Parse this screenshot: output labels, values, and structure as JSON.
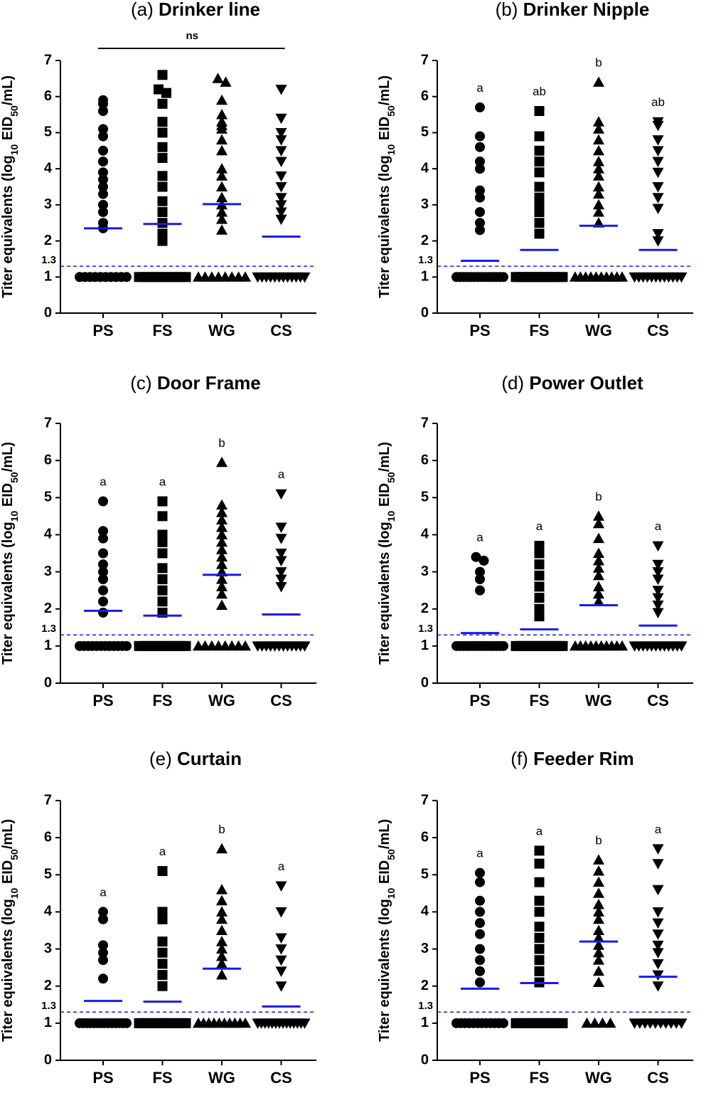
{
  "chart_data": [
    {
      "type": "dotplot",
      "label": "(a)",
      "title": "Drinker line",
      "ylabel": [
        "Titer equivalents (log",
        "10",
        " EID",
        "50",
        "/mL)"
      ],
      "categories": [
        "PS",
        "FS",
        "WG",
        "CS"
      ],
      "markers": [
        "circle",
        "square",
        "triangle-up",
        "triangle-down"
      ],
      "values": [
        [
          5.9,
          5.8,
          5.6,
          5.1,
          4.9,
          4.5,
          4.2,
          3.9,
          3.7,
          3.5,
          3.3,
          3.0,
          2.8,
          2.5,
          2.35,
          1,
          1,
          1,
          1,
          1,
          1,
          1,
          1,
          1,
          1
        ],
        [
          6.6,
          6.2,
          6.1,
          5.8,
          5.3,
          5.0,
          4.6,
          4.3,
          3.8,
          3.5,
          3.1,
          2.8,
          2.5,
          2.2,
          2.0,
          1,
          1,
          1,
          1,
          1,
          1,
          1,
          1,
          1,
          1
        ],
        [
          6.5,
          6.4,
          5.9,
          5.5,
          5.3,
          5.2,
          5.1,
          4.8,
          4.5,
          4.0,
          3.8,
          3.5,
          3.2,
          3.0,
          2.8,
          2.6,
          2.3,
          1,
          1,
          1,
          1,
          1,
          1,
          1,
          1
        ],
        [
          6.2,
          5.4,
          5.0,
          4.8,
          4.5,
          4.2,
          3.8,
          3.5,
          3.2,
          3.0,
          2.8,
          2.6,
          1,
          1,
          1,
          1,
          1,
          1,
          1,
          1,
          1,
          1,
          1,
          1
        ]
      ],
      "means": [
        2.35,
        2.47,
        3.02,
        2.12
      ],
      "annotation": "ns",
      "threshold": 1.3,
      "color": "#000000",
      "mean_color": "#1a1ae6",
      "ylim": [
        0,
        7
      ],
      "yticks": [
        0,
        1,
        2,
        3,
        4,
        5,
        6,
        7
      ]
    },
    {
      "type": "dotplot",
      "label": "(b)",
      "title": "Drinker Nipple",
      "ylabel": [
        "Titer equivalents (log",
        "10",
        " EID",
        "50",
        "/mL)"
      ],
      "categories": [
        "PS",
        "FS",
        "WG",
        "CS"
      ],
      "markers": [
        "circle",
        "square",
        "triangle-up",
        "triangle-down"
      ],
      "values": [
        [
          5.7,
          4.9,
          4.6,
          4.2,
          4.0,
          3.4,
          3.2,
          2.8,
          2.5,
          2.3,
          1,
          1,
          1,
          1,
          1,
          1,
          1,
          1,
          1,
          1,
          1,
          1,
          1,
          1
        ],
        [
          5.6,
          4.9,
          4.5,
          4.2,
          3.9,
          3.5,
          3.2,
          3.0,
          2.8,
          2.5,
          2.2,
          1,
          1,
          1,
          1,
          1,
          1,
          1,
          1,
          1,
          1,
          1,
          1,
          1
        ],
        [
          6.4,
          5.3,
          5.1,
          4.8,
          4.5,
          4.2,
          4.0,
          3.8,
          3.5,
          3.3,
          3.0,
          2.8,
          2.5,
          1,
          1,
          1,
          1,
          1,
          1,
          1,
          1,
          1,
          1
        ],
        [
          5.3,
          5.2,
          4.8,
          4.5,
          4.2,
          3.9,
          3.5,
          3.2,
          2.9,
          2.2,
          2.0,
          1,
          1,
          1,
          1,
          1,
          1,
          1,
          1,
          1,
          1,
          1,
          1
        ]
      ],
      "means": [
        1.45,
        1.75,
        2.42,
        1.75
      ],
      "letters": [
        "a",
        "ab",
        "b",
        "ab"
      ],
      "threshold": 1.3,
      "color": "#000000",
      "mean_color": "#1a1ae6",
      "ylim": [
        0,
        7
      ],
      "yticks": [
        0,
        1,
        2,
        3,
        4,
        5,
        6,
        7
      ]
    },
    {
      "type": "dotplot",
      "label": "(c)",
      "title": "Door Frame",
      "ylabel": [
        "Titer equivalents (log",
        "10",
        " EID",
        "50",
        "/mL)"
      ],
      "categories": [
        "PS",
        "FS",
        "WG",
        "CS"
      ],
      "markers": [
        "circle",
        "square",
        "triangle-up",
        "triangle-down"
      ],
      "values": [
        [
          4.9,
          4.1,
          3.9,
          3.5,
          3.2,
          3.0,
          2.8,
          2.5,
          2.2,
          1.9,
          1,
          1,
          1,
          1,
          1,
          1,
          1,
          1,
          1,
          1,
          1,
          1
        ],
        [
          4.9,
          4.5,
          4.0,
          3.8,
          3.5,
          3.1,
          2.8,
          2.5,
          2.2,
          1.9,
          1,
          1,
          1,
          1,
          1,
          1,
          1,
          1,
          1,
          1,
          1,
          1
        ],
        [
          5.95,
          4.8,
          4.6,
          4.4,
          4.2,
          4.0,
          3.8,
          3.6,
          3.4,
          3.2,
          3.0,
          2.8,
          2.6,
          2.4,
          2.1,
          1,
          1,
          1,
          1,
          1,
          1,
          1,
          1
        ],
        [
          5.1,
          4.2,
          3.9,
          3.5,
          3.3,
          3.0,
          2.8,
          2.6,
          1,
          1,
          1,
          1,
          1,
          1,
          1,
          1,
          1,
          1,
          1,
          1
        ]
      ],
      "means": [
        1.95,
        1.82,
        2.92,
        1.85
      ],
      "letters": [
        "a",
        "a",
        "b",
        "a"
      ],
      "threshold": 1.3,
      "color": "#000000",
      "mean_color": "#1a1ae6",
      "ylim": [
        0,
        7
      ],
      "yticks": [
        0,
        1,
        2,
        3,
        4,
        5,
        6,
        7
      ]
    },
    {
      "type": "dotplot",
      "label": "(d)",
      "title": "Power Outlet",
      "ylabel": [
        "Titer equivalents (log",
        "10",
        " EID",
        "50",
        "/mL)"
      ],
      "categories": [
        "PS",
        "FS",
        "WG",
        "CS"
      ],
      "markers": [
        "circle",
        "square",
        "triangle-up",
        "triangle-down"
      ],
      "values": [
        [
          3.4,
          3.3,
          3.0,
          2.8,
          2.5,
          1,
          1,
          1,
          1,
          1,
          1,
          1,
          1,
          1,
          1,
          1,
          1,
          1,
          1,
          1
        ],
        [
          3.7,
          3.5,
          3.2,
          2.9,
          2.6,
          2.3,
          2.0,
          1.8,
          1,
          1,
          1,
          1,
          1,
          1,
          1,
          1,
          1,
          1,
          1,
          1,
          1,
          1
        ],
        [
          4.5,
          4.3,
          3.9,
          3.5,
          3.3,
          3.1,
          2.9,
          2.6,
          2.4,
          2.2,
          1,
          1,
          1,
          1,
          1,
          1,
          1,
          1,
          1,
          1
        ],
        [
          3.7,
          3.2,
          3.0,
          2.8,
          2.5,
          2.3,
          2.1,
          1.9,
          1,
          1,
          1,
          1,
          1,
          1,
          1,
          1,
          1,
          1,
          1,
          1
        ]
      ],
      "means": [
        1.35,
        1.45,
        2.1,
        1.55
      ],
      "letters": [
        "a",
        "a",
        "b",
        "a"
      ],
      "threshold": 1.3,
      "color": "#000000",
      "mean_color": "#1a1ae6",
      "ylim": [
        0,
        7
      ],
      "yticks": [
        0,
        1,
        2,
        3,
        4,
        5,
        6,
        7
      ]
    },
    {
      "type": "dotplot",
      "label": "(e)",
      "title": "Curtain",
      "ylabel": [
        "Titer equivalents (log",
        "10",
        " EID",
        "50",
        "/mL)"
      ],
      "categories": [
        "PS",
        "FS",
        "WG",
        "CS"
      ],
      "markers": [
        "circle",
        "square",
        "triangle-up",
        "triangle-down"
      ],
      "values": [
        [
          4.0,
          3.8,
          3.1,
          2.9,
          2.7,
          2.2,
          1,
          1,
          1,
          1,
          1,
          1,
          1,
          1,
          1,
          1,
          1,
          1,
          1,
          1
        ],
        [
          5.1,
          4.0,
          3.8,
          3.2,
          2.9,
          2.6,
          2.3,
          2.0,
          1,
          1,
          1,
          1,
          1,
          1,
          1,
          1,
          1,
          1,
          1,
          1,
          1,
          1
        ],
        [
          5.7,
          4.6,
          4.3,
          4.0,
          3.8,
          3.5,
          3.2,
          3.0,
          2.8,
          2.6,
          2.3,
          1,
          1,
          1,
          1,
          1,
          1,
          1,
          1,
          1,
          1
        ],
        [
          4.7,
          4.0,
          3.3,
          3.0,
          2.7,
          2.4,
          2.0,
          1,
          1,
          1,
          1,
          1,
          1,
          1,
          1,
          1,
          1,
          1,
          1,
          1,
          1
        ]
      ],
      "means": [
        1.6,
        1.58,
        2.47,
        1.45
      ],
      "letters": [
        "a",
        "a",
        "b",
        "a"
      ],
      "threshold": 1.3,
      "color": "#000000",
      "mean_color": "#1a1ae6",
      "ylim": [
        0,
        7
      ],
      "yticks": [
        0,
        1,
        2,
        3,
        4,
        5,
        6,
        7
      ]
    },
    {
      "type": "dotplot",
      "label": "(f)",
      "title": "Feeder Rim",
      "ylabel": [
        "Titer equivalents (log",
        "10",
        " EID",
        "50",
        "/mL)"
      ],
      "categories": [
        "PS",
        "FS",
        "WG",
        "CS"
      ],
      "markers": [
        "circle",
        "square",
        "triangle-up",
        "triangle-down"
      ],
      "values": [
        [
          5.05,
          4.8,
          4.3,
          4.0,
          3.7,
          3.4,
          3.0,
          2.7,
          2.4,
          2.1,
          1,
          1,
          1,
          1,
          1,
          1,
          1,
          1,
          1,
          1,
          1,
          1
        ],
        [
          5.65,
          5.3,
          4.8,
          4.3,
          4.0,
          3.6,
          3.3,
          3.0,
          2.7,
          2.4,
          2.1,
          1,
          1,
          1,
          1,
          1,
          1,
          1,
          1,
          1,
          1,
          1,
          1
        ],
        [
          5.4,
          5.1,
          4.8,
          4.5,
          4.2,
          4.0,
          3.8,
          3.5,
          3.3,
          3.1,
          2.9,
          2.7,
          2.4,
          2.1,
          1,
          1,
          1,
          1
        ],
        [
          5.7,
          5.3,
          4.6,
          4.0,
          3.7,
          3.4,
          3.1,
          2.9,
          2.6,
          2.3,
          2.0,
          1,
          1,
          1,
          1,
          1,
          1,
          1,
          1,
          1,
          1
        ]
      ],
      "means": [
        1.93,
        2.08,
        3.2,
        2.25
      ],
      "letters": [
        "a",
        "a",
        "b",
        "a"
      ],
      "threshold": 1.3,
      "color": "#000000",
      "mean_color": "#1a1ae6",
      "ylim": [
        0,
        7
      ],
      "yticks": [
        0,
        1,
        2,
        3,
        4,
        5,
        6,
        7
      ]
    }
  ]
}
